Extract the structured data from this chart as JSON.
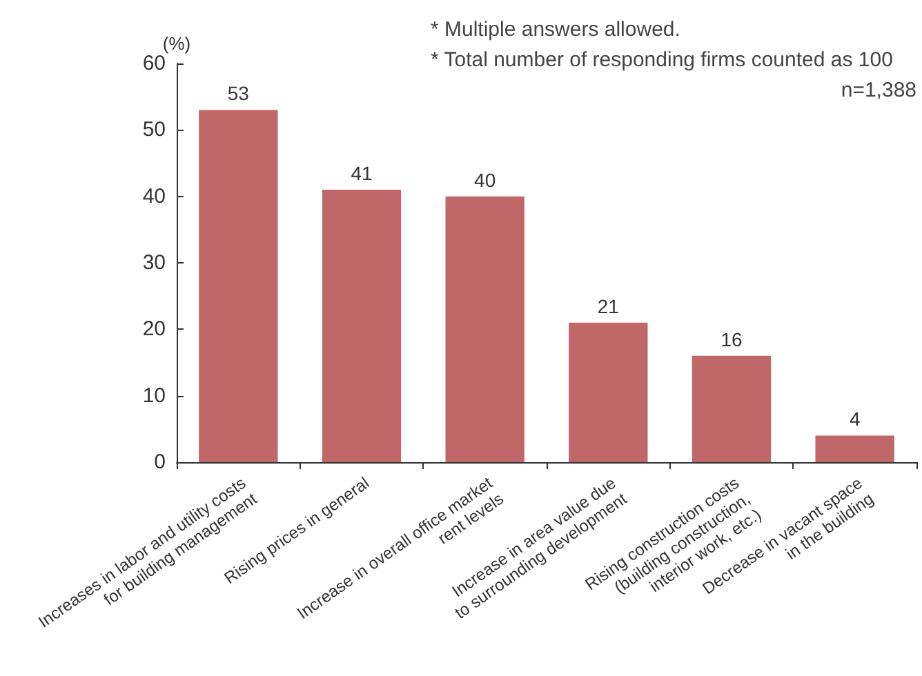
{
  "chart_data": {
    "type": "bar",
    "ylabel": "(%)",
    "categories": [
      "Increases in labor and utility costs\nfor building management",
      "Rising prices in general",
      "Increase in overall office market\nrent levels",
      "Increase in area value due\nto surrounding development",
      "Rising construction costs\n(building construction,\ninterior work, etc.)",
      "Decrease in vacant space\nin the building"
    ],
    "values": [
      53,
      41,
      40,
      21,
      16,
      4
    ],
    "color": "#c0676a",
    "data_labels": true,
    "ylim": [
      0,
      60
    ],
    "yticks": [
      0,
      10,
      20,
      30,
      40,
      50,
      60
    ],
    "grid": false,
    "annotations": [
      "* Multiple answers allowed.",
      "* Total number of responding firms counted as 100",
      "n=1,388"
    ]
  }
}
